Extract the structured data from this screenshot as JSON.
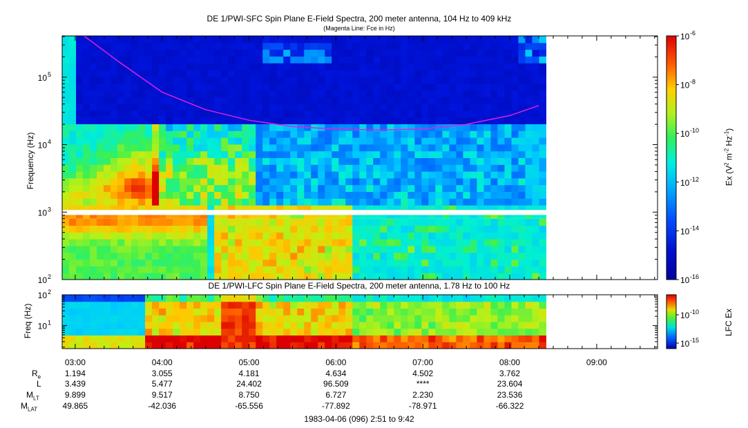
{
  "chart_data": [
    {
      "type": "heatmap",
      "title": "DE 1/PWI-SFC  Spin Plane E-Field Spectra, 200 meter antenna, 104 Hz to 409 kHz",
      "subtitle": "(Magenta Line: Fce in Hz)",
      "ylabel": "Frequency (Hz)",
      "yscale": "log",
      "ylim": [
        100,
        409000
      ],
      "yticks": [
        {
          "value": 100,
          "label": "10",
          "exp": "2"
        },
        {
          "value": 1000,
          "label": "10",
          "exp": "3"
        },
        {
          "value": 10000,
          "label": "10",
          "exp": "4"
        },
        {
          "value": 100000,
          "label": "10",
          "exp": "5"
        }
      ],
      "xlim": [
        "02:51",
        "09:42"
      ],
      "data_end": "08:25",
      "fce_line": {
        "color": "#e020e0",
        "points": [
          {
            "t": "03:06",
            "f": 450000
          },
          {
            "t": "03:30",
            "f": 170000
          },
          {
            "t": "04:00",
            "f": 60000
          },
          {
            "t": "04:30",
            "f": 33000
          },
          {
            "t": "05:00",
            "f": 23000
          },
          {
            "t": "05:30",
            "f": 18500
          },
          {
            "t": "06:00",
            "f": 17000
          },
          {
            "t": "06:30",
            "f": 16500
          },
          {
            "t": "07:00",
            "f": 17000
          },
          {
            "t": "07:30",
            "f": 20000
          },
          {
            "t": "08:00",
            "f": 27000
          },
          {
            "t": "08:20",
            "f": 38000
          }
        ]
      },
      "colorbar": {
        "label": "Ex (V",
        "label_sup1": "2",
        "label_mid": " m",
        "label_sup2": "-2",
        "label_mid2": " Hz",
        "label_sup3": "-1",
        "label_end": ")",
        "scale": "log",
        "range": [
          1e-16,
          1e-06
        ],
        "ticks": [
          {
            "base": "10",
            "exp": "-6"
          },
          {
            "base": "10",
            "exp": "-8"
          },
          {
            "base": "10",
            "exp": "-10"
          },
          {
            "base": "10",
            "exp": "-12"
          },
          {
            "base": "10",
            "exp": "-14"
          },
          {
            "base": "10",
            "exp": "-16"
          }
        ]
      }
    },
    {
      "type": "heatmap",
      "title": "DE 1/PWI-LFC  Spin Plane E-Field Spectra, 200 meter antenna, 1.78 Hz to 100 Hz",
      "ylabel": "Freq (Hz)",
      "yscale": "log",
      "ylim": [
        1.78,
        100
      ],
      "yticks": [
        {
          "value": 100,
          "label": "10",
          "exp": "2"
        },
        {
          "value": 10,
          "label": "10",
          "exp": "1"
        }
      ],
      "xlim": [
        "02:51",
        "09:42"
      ],
      "data_end": "08:25",
      "colorbar": {
        "label": "LFC Ex",
        "scale": "log",
        "ticks": [
          {
            "base": "10",
            "exp": "-10"
          },
          {
            "base": "10",
            "exp": "-15"
          }
        ]
      }
    }
  ],
  "x_axis": {
    "ticks": [
      "03:00",
      "04:00",
      "05:00",
      "06:00",
      "07:00",
      "08:00",
      "09:00"
    ]
  },
  "ephemeris": {
    "rows": [
      {
        "label": "R",
        "sub": "e",
        "values": [
          "1.194",
          "3.055",
          "4.181",
          "4.634",
          "4.502",
          "3.762"
        ]
      },
      {
        "label": "L",
        "sub": "",
        "values": [
          "3.439",
          "5.477",
          "24.402",
          "96.509",
          "****",
          "23.604"
        ]
      },
      {
        "label": "M",
        "sub": "LT",
        "values": [
          "9.899",
          "9.517",
          "8.750",
          "6.727",
          "2.230",
          "23.536"
        ]
      },
      {
        "label": "M",
        "sub": "LAT",
        "values": [
          "49.865",
          "-42.036",
          "-65.556",
          "-77.892",
          "-78.971",
          "-66.322"
        ]
      }
    ]
  },
  "footer": "1983-04-06 (096) 2:51 to 9:42"
}
